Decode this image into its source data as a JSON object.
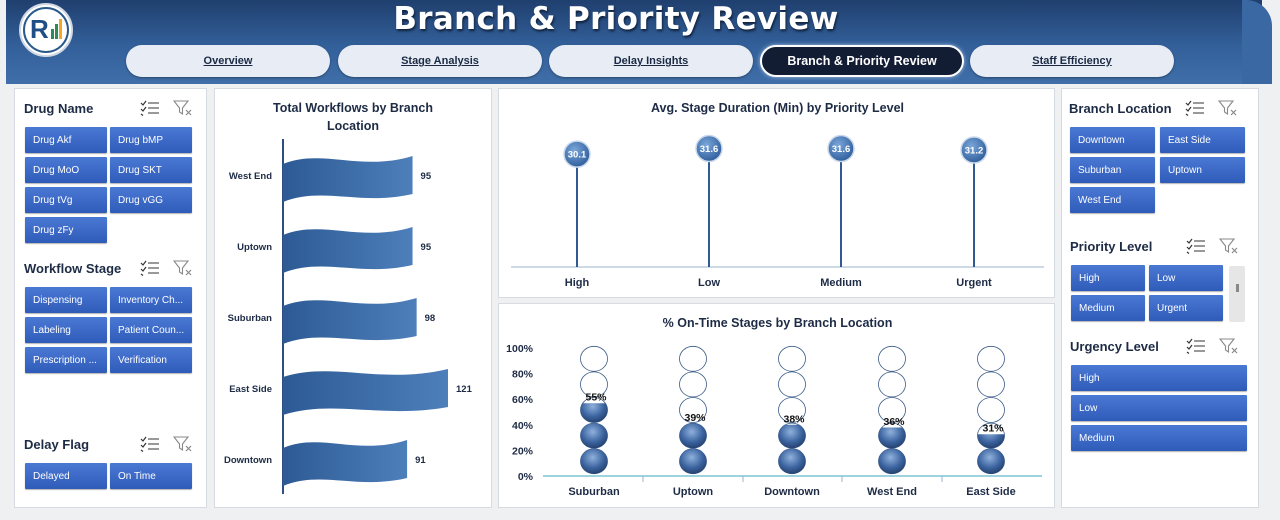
{
  "header": {
    "title": "Branch & Priority Review",
    "tabs": [
      {
        "label": "Overview",
        "active": false
      },
      {
        "label": "Stage Analysis",
        "active": false
      },
      {
        "label": "Delay Insights",
        "active": false
      },
      {
        "label": "Branch & Priority Review",
        "active": true
      },
      {
        "label": "Staff Efficiency",
        "active": false
      }
    ]
  },
  "slicers": {
    "drug_name": {
      "title": "Drug Name",
      "items": [
        "Drug Akf",
        "Drug bMP",
        "Drug MoO",
        "Drug SKT",
        "Drug tVg",
        "Drug vGG",
        "Drug zFy"
      ]
    },
    "workflow_stage": {
      "title": "Workflow Stage",
      "items": [
        "Dispensing",
        "Inventory Ch...",
        "Labeling",
        "Patient Coun...",
        "Prescription ...",
        "Verification"
      ]
    },
    "delay_flag": {
      "title": "Delay Flag",
      "items": [
        "Delayed",
        "On Time"
      ]
    },
    "branch_location": {
      "title": "Branch Location",
      "items": [
        "Downtown",
        "East Side",
        "Suburban",
        "Uptown",
        "West End"
      ]
    },
    "priority_level": {
      "title": "Priority Level",
      "items": [
        "High",
        "Low",
        "Medium",
        "Urgent"
      ]
    },
    "urgency_level": {
      "title": "Urgency Level",
      "items": [
        "High",
        "Low",
        "Medium"
      ]
    }
  },
  "colors": {
    "accent": "#2f5bb9",
    "header": "#33609a",
    "bar": "#3f6ea8"
  },
  "chart_data": [
    {
      "type": "bar",
      "title": "Total Workflows by Branch Location",
      "categories": [
        "West End",
        "Uptown",
        "Suburban",
        "East Side",
        "Downtown"
      ],
      "values": [
        95,
        95,
        98,
        121,
        91
      ],
      "orientation": "horizontal"
    },
    {
      "type": "scatter",
      "title": "Avg. Stage Duration (Min) by Priority Level",
      "categories": [
        "High",
        "Low",
        "Medium",
        "Urgent"
      ],
      "values": [
        30.1,
        31.6,
        31.6,
        31.2
      ]
    },
    {
      "type": "bar",
      "title": "% On-Time Stages by Branch Location",
      "categories": [
        "Suburban",
        "Uptown",
        "Downtown",
        "West End",
        "East Side"
      ],
      "values": [
        55,
        39,
        38,
        36,
        31
      ],
      "value_labels": [
        "55%",
        "39%",
        "38%",
        "36%",
        "31%"
      ],
      "y_ticks": [
        "100%",
        "80%",
        "60%",
        "40%",
        "20%",
        "0%"
      ],
      "ylim": [
        0,
        100
      ]
    }
  ]
}
